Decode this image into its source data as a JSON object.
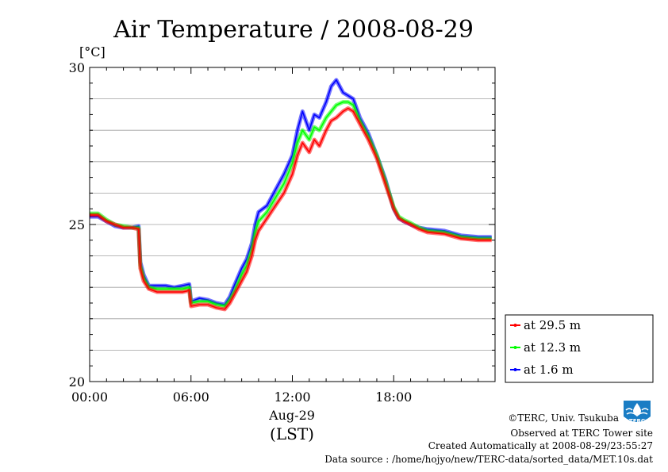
{
  "chart_data": {
    "type": "line",
    "title": "Air Temperature / 2008-08-29",
    "ylabel": "[°C]",
    "xlabel_line1": "Aug-29",
    "xlabel_line2": "(LST)",
    "ylim": [
      20,
      30
    ],
    "xlim": [
      0,
      24
    ],
    "yticks": [
      20,
      25,
      30
    ],
    "xticks": [
      {
        "h": 0,
        "label": "00:00"
      },
      {
        "h": 6,
        "label": "06:00"
      },
      {
        "h": 12,
        "label": "12:00"
      },
      {
        "h": 18,
        "label": "18:00"
      }
    ],
    "grid": true,
    "legend_position": "bottom-right-outside",
    "colors": {
      "s1": "#ff0000",
      "s2": "#00ff00",
      "s3": "#0000ff"
    },
    "x": [
      0,
      0.5,
      1,
      1.5,
      2,
      2.5,
      2.9,
      3.0,
      3.2,
      3.5,
      4,
      4.5,
      5,
      5.5,
      5.9,
      6.0,
      6.5,
      7,
      7.5,
      8,
      8.3,
      8.6,
      9,
      9.3,
      9.6,
      9.8,
      10,
      10.5,
      11,
      11.5,
      12,
      12.3,
      12.6,
      13,
      13.3,
      13.6,
      14,
      14.3,
      14.6,
      15,
      15.3,
      15.6,
      16,
      16.5,
      17,
      17.5,
      18,
      18.3,
      18.6,
      19,
      19.5,
      20,
      21,
      22,
      23,
      23.8
    ],
    "series": [
      {
        "name": "at 29.5 m",
        "key": "s1",
        "values": [
          25.3,
          25.3,
          25.1,
          25.0,
          24.9,
          24.9,
          24.85,
          23.6,
          23.2,
          22.95,
          22.85,
          22.85,
          22.85,
          22.85,
          22.9,
          22.4,
          22.45,
          22.45,
          22.35,
          22.3,
          22.5,
          22.8,
          23.2,
          23.5,
          24.0,
          24.5,
          24.8,
          25.2,
          25.6,
          26.0,
          26.6,
          27.2,
          27.6,
          27.3,
          27.7,
          27.5,
          28.0,
          28.3,
          28.4,
          28.6,
          28.7,
          28.6,
          28.2,
          27.7,
          27.1,
          26.3,
          25.5,
          25.2,
          25.1,
          25.0,
          24.85,
          24.75,
          24.7,
          24.55,
          24.5,
          24.5
        ]
      },
      {
        "name": "at 12.3 m",
        "key": "s2",
        "values": [
          25.35,
          25.35,
          25.15,
          25.0,
          24.95,
          24.9,
          24.9,
          23.7,
          23.3,
          23.0,
          22.95,
          22.95,
          22.95,
          22.95,
          23.0,
          22.5,
          22.55,
          22.55,
          22.45,
          22.4,
          22.6,
          22.9,
          23.4,
          23.7,
          24.2,
          24.75,
          25.1,
          25.4,
          25.85,
          26.3,
          26.95,
          27.6,
          28.0,
          27.7,
          28.1,
          28.0,
          28.4,
          28.6,
          28.8,
          28.9,
          28.9,
          28.8,
          28.3,
          27.8,
          27.2,
          26.4,
          25.55,
          25.25,
          25.15,
          25.05,
          24.9,
          24.8,
          24.75,
          24.6,
          24.55,
          24.55
        ]
      },
      {
        "name": "at 1.6 m",
        "key": "s3",
        "values": [
          25.25,
          25.25,
          25.1,
          24.95,
          24.9,
          24.9,
          24.95,
          23.8,
          23.4,
          23.05,
          23.05,
          23.05,
          23.0,
          23.05,
          23.1,
          22.55,
          22.65,
          22.6,
          22.5,
          22.45,
          22.7,
          23.1,
          23.6,
          23.9,
          24.4,
          25.0,
          25.4,
          25.6,
          26.1,
          26.6,
          27.2,
          28.0,
          28.6,
          28.0,
          28.5,
          28.4,
          28.9,
          29.4,
          29.6,
          29.2,
          29.1,
          29.0,
          28.4,
          27.9,
          27.2,
          26.45,
          25.5,
          25.2,
          25.1,
          25.0,
          24.9,
          24.85,
          24.8,
          24.65,
          24.6,
          24.6
        ]
      }
    ]
  },
  "footer": {
    "copyright": "©TERC, Univ. Tsukuba",
    "observed": "Observed at TERC Tower site",
    "created": "Created Automatically at 2008-08-29/23:55:27",
    "source": "Data source : /home/hojyo/new/TERC-data/sorted_data/MET.10s.dat"
  },
  "logo": {
    "icon": "terc-logo-icon",
    "text": "TERC",
    "color": "#1a7dc4"
  }
}
